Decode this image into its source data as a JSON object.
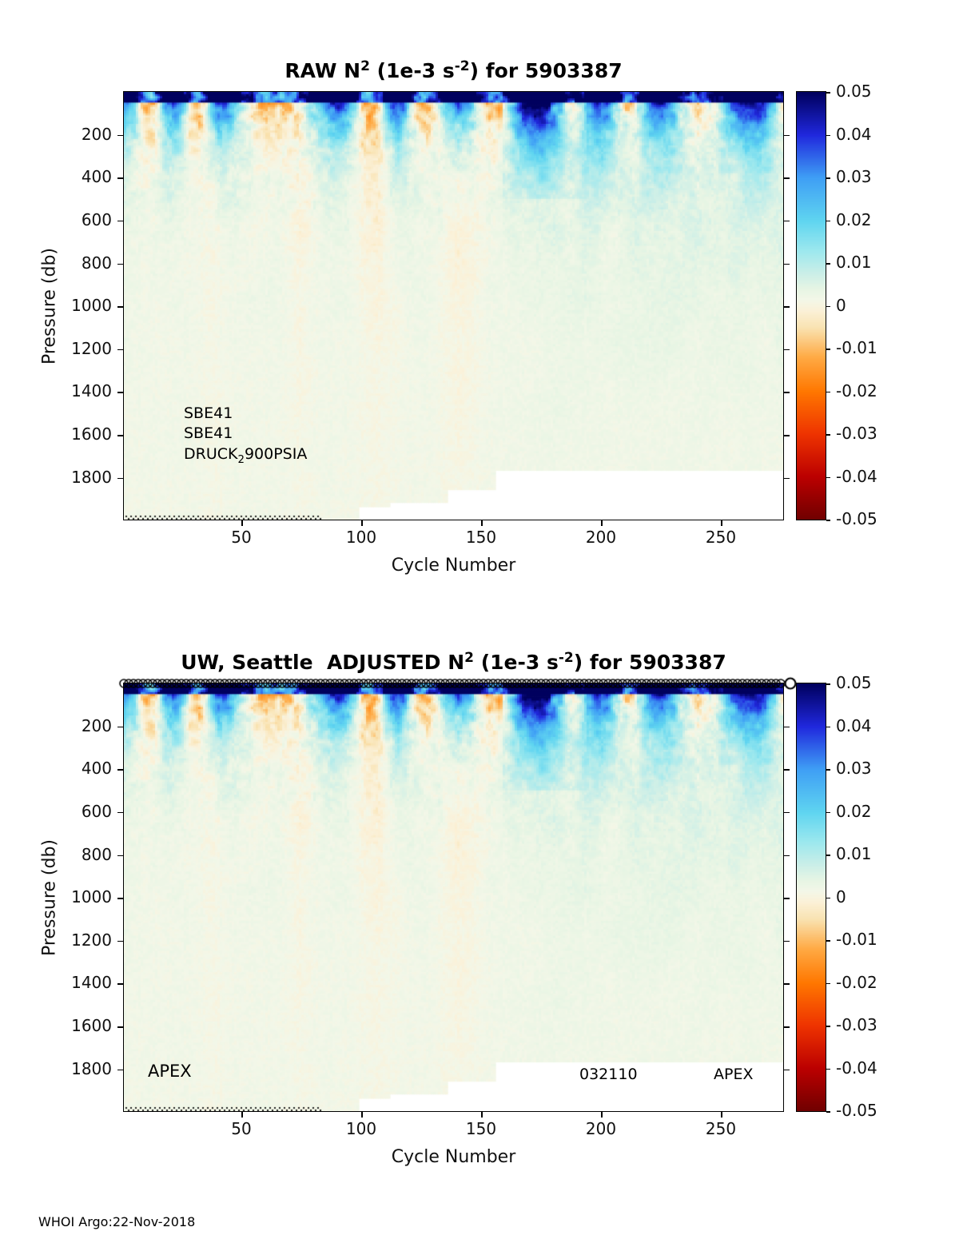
{
  "page": {
    "footer": "WHOI Argo:22-Nov-2018"
  },
  "colormap": [
    {
      "v": -0.05,
      "c": "#700000"
    },
    {
      "v": -0.04,
      "c": "#bb0000"
    },
    {
      "v": -0.03,
      "c": "#ee3300"
    },
    {
      "v": -0.02,
      "c": "#ff7700"
    },
    {
      "v": -0.012,
      "c": "#ffaa44"
    },
    {
      "v": -0.005,
      "c": "#f9e3b2"
    },
    {
      "v": -0.001,
      "c": "#fbf1d8"
    },
    {
      "v": 0.0015,
      "c": "#f3f7e8"
    },
    {
      "v": 0.004,
      "c": "#e7f5e4"
    },
    {
      "v": 0.008,
      "c": "#c8eee8"
    },
    {
      "v": 0.013,
      "c": "#9ce8ee"
    },
    {
      "v": 0.02,
      "c": "#5fd5f0"
    },
    {
      "v": 0.03,
      "c": "#3f9ff5"
    },
    {
      "v": 0.04,
      "c": "#2028dd"
    },
    {
      "v": 0.05,
      "c": "#00005e"
    }
  ],
  "chart_data": [
    {
      "type": "heatmap",
      "title_text": "RAW N^2 (1e-3 s^-2) for 5903387",
      "title_parts": [
        {
          "t": "RAW N"
        },
        {
          "t": "2",
          "sup": true
        },
        {
          "t": " (1e-3 s"
        },
        {
          "t": "-2",
          "sup": true
        },
        {
          "t": ") for 5903387"
        }
      ],
      "xlabel": "Cycle Number",
      "ylabel": "Pressure (db)",
      "xlim": [
        1,
        276
      ],
      "ylim": [
        0,
        1995
      ],
      "y_axis_reversed": true,
      "xticks": [
        50,
        100,
        150,
        200,
        250
      ],
      "yticks": [
        200,
        400,
        600,
        800,
        1000,
        1200,
        1400,
        1600,
        1800
      ],
      "colorbar": {
        "min": -0.05,
        "max": 0.05,
        "ticks": [
          0.05,
          0.04,
          0.03,
          0.02,
          0.01,
          0,
          -0.01,
          -0.02,
          -0.03,
          -0.04,
          -0.05
        ]
      },
      "annotations": [
        {
          "x": 26,
          "y": 1458,
          "size": 19,
          "parts": [
            {
              "t": "SBE41"
            }
          ]
        },
        {
          "x": 26,
          "y": 1552,
          "size": 19,
          "parts": [
            {
              "t": "SBE41"
            }
          ]
        },
        {
          "x": 26,
          "y": 1648,
          "size": 19,
          "parts": [
            {
              "t": "DRUCK"
            },
            {
              "t": "2",
              "sub": true
            },
            {
              "t": "900PSIA"
            }
          ]
        }
      ],
      "top_markers": false,
      "heatmap_model": {
        "seed": 20181122,
        "cycles": 275,
        "pressure_max": 1995,
        "bin_db": 10,
        "max_depth_steps": [
          {
            "until": 98,
            "depth": 1995
          },
          {
            "until": 111,
            "depth": 1940
          },
          {
            "until": 135,
            "depth": 1915
          },
          {
            "until": 155,
            "depth": 1860
          },
          {
            "until": 275,
            "depth": 1772
          }
        ],
        "streaks": [
          {
            "c": 38,
            "w": 8,
            "amp": 0.006,
            "depth": 900
          },
          {
            "c": 74,
            "w": 9,
            "amp": 0.0065,
            "depth": 1000
          },
          {
            "c": 106,
            "w": 12,
            "amp": 0.007,
            "depth": 1100
          },
          {
            "c": 140,
            "w": 14,
            "amp": 0.0075,
            "depth": 1100
          },
          {
            "c": 203,
            "w": 5,
            "amp": 0.004,
            "depth": 600
          }
        ],
        "dotted_until_cycle": 82
      },
      "visual_features": [
        "dark blue (N2 ~0.04-0.05) mixed-layer band in upper ~0-300 db for all cycles, organized in repeating blobs every ~30 cycles",
        "pale cream (slightly negative) patches between surface blobs and vertical streaks near cycles ~38, ~74, ~106, ~140 reaching ~1300 db",
        "broad light-cyan enhancement for cycles >150, strongest ~160-195 in upper 500 db",
        "weakly positive pale-green background (~0.002) at depth",
        "no data (white) below ~1940 db for cycles 99-135, ~1860 db for 136-155, ~1770 db for cycles >156"
      ]
    },
    {
      "type": "heatmap",
      "title_text": "UW, Seattle  ADJUSTED N^2 (1e-3 s^-2) for 5903387",
      "title_parts": [
        {
          "t": "UW, Seattle  ADJUSTED N"
        },
        {
          "t": "2",
          "sup": true
        },
        {
          "t": " (1e-3 s"
        },
        {
          "t": "-2",
          "sup": true
        },
        {
          "t": ") for 5903387"
        }
      ],
      "xlabel": "Cycle Number",
      "ylabel": "Pressure (db)",
      "xlim": [
        1,
        276
      ],
      "ylim": [
        0,
        1995
      ],
      "y_axis_reversed": true,
      "xticks": [
        50,
        100,
        150,
        200,
        250
      ],
      "yticks": [
        200,
        400,
        600,
        800,
        1000,
        1200,
        1400,
        1600,
        1800
      ],
      "colorbar": {
        "min": -0.05,
        "max": 0.05,
        "ticks": [
          0.05,
          0.04,
          0.03,
          0.02,
          0.01,
          0,
          -0.01,
          -0.02,
          -0.03,
          -0.04,
          -0.05
        ]
      },
      "annotations": [
        {
          "x": 11,
          "y": 1762,
          "size": 21,
          "parts": [
            {
              "t": "APEX"
            }
          ]
        },
        {
          "x": 191,
          "y": 1784,
          "size": 19,
          "parts": [
            {
              "t": "032110"
            }
          ]
        },
        {
          "x": 247,
          "y": 1784,
          "size": 19,
          "parts": [
            {
              "t": "APEX"
            }
          ]
        }
      ],
      "top_markers": true,
      "heatmap_model": {
        "seed": 20181122,
        "cycles": 275,
        "pressure_max": 1995,
        "bin_db": 10,
        "max_depth_steps": [
          {
            "until": 98,
            "depth": 1995
          },
          {
            "until": 111,
            "depth": 1940
          },
          {
            "until": 135,
            "depth": 1915
          },
          {
            "until": 155,
            "depth": 1860
          },
          {
            "until": 275,
            "depth": 1772
          }
        ],
        "streaks": [
          {
            "c": 38,
            "w": 8,
            "amp": 0.006,
            "depth": 900
          },
          {
            "c": 74,
            "w": 9,
            "amp": 0.0065,
            "depth": 1000
          },
          {
            "c": 106,
            "w": 12,
            "amp": 0.007,
            "depth": 1100
          },
          {
            "c": 140,
            "w": 14,
            "amp": 0.0075,
            "depth": 1100
          },
          {
            "c": 203,
            "w": 5,
            "amp": 0.004,
            "depth": 600
          }
        ],
        "dotted_until_cycle": 82
      },
      "visual_features": [
        "same field as RAW panel (adjustment nearly identical at this scale)",
        "row of black circle markers along the top edge marking each profile/cycle"
      ]
    }
  ]
}
